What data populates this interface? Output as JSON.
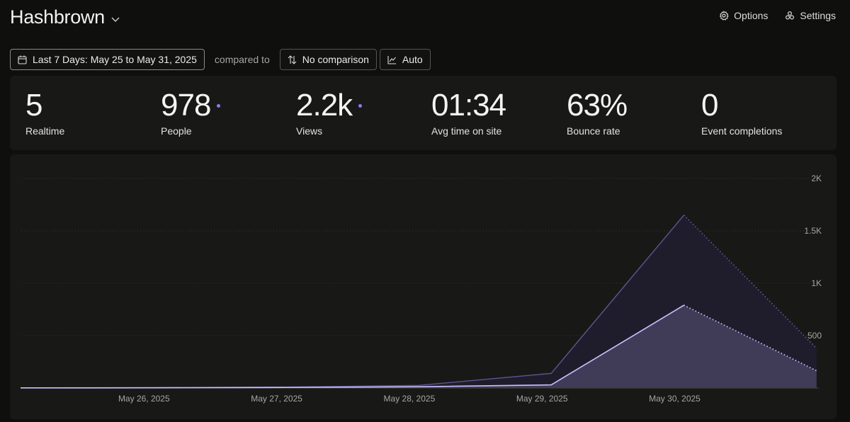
{
  "header": {
    "site_name": "Hashbrown",
    "options_label": "Options",
    "settings_label": "Settings"
  },
  "filters": {
    "date_range": "Last 7 Days: May 25 to May 31, 2025",
    "compared_to": "compared to",
    "comparison": "No comparison",
    "interval": "Auto"
  },
  "stats": [
    {
      "value": "5",
      "label": "Realtime",
      "marker": false
    },
    {
      "value": "978",
      "label": "People",
      "marker": true
    },
    {
      "value": "2.2k",
      "label": "Views",
      "marker": true
    },
    {
      "value": "01:34",
      "label": "Avg time on site",
      "marker": false
    },
    {
      "value": "63%",
      "label": "Bounce rate",
      "marker": false
    },
    {
      "value": "0",
      "label": "Event completions",
      "marker": false
    }
  ],
  "colors": {
    "accent": "#8b7cf0",
    "views_line": "#5d5690",
    "views_fill": "#1f1d2c",
    "people_line": "#c9c2ff",
    "people_fill": "#403b57"
  },
  "chart_data": {
    "type": "area",
    "x": [
      "May 25, 2025",
      "May 26, 2025",
      "May 27, 2025",
      "May 28, 2025",
      "May 29, 2025",
      "May 30, 2025",
      "May 31, 2025"
    ],
    "xticks": [
      "May 26, 2025",
      "May 27, 2025",
      "May 28, 2025",
      "May 29, 2025",
      "May 30, 2025"
    ],
    "yticks": [
      "2K",
      "1.5K",
      "1K",
      "500"
    ],
    "ylim": [
      0,
      2000
    ],
    "grid": true,
    "series": [
      {
        "key": "views",
        "values": [
          2,
          4,
          10,
          25,
          140,
          1650,
          380
        ],
        "partial_last": true
      },
      {
        "key": "people",
        "values": [
          1,
          2,
          5,
          12,
          30,
          790,
          165
        ],
        "partial_last": true
      }
    ]
  }
}
